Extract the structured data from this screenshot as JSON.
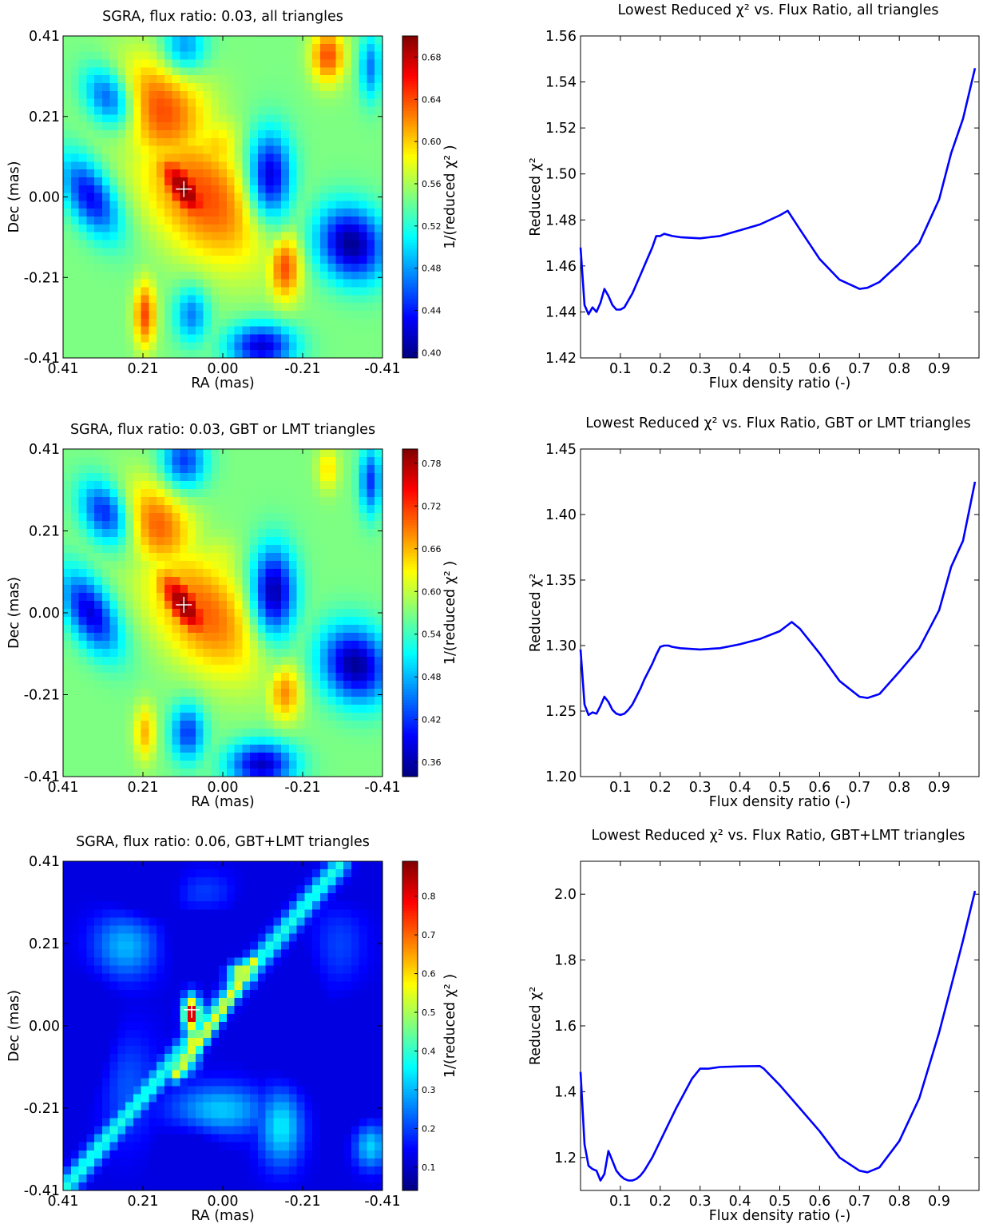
{
  "chart_data": [
    {
      "type": "heatmap",
      "title": "SGRA, flux ratio: 0.03, all triangles",
      "xlabel": "RA (mas)",
      "ylabel": "Dec (mas)",
      "x_ticks": [
        "0.41",
        "0.21",
        "0.00",
        "-0.21",
        "-0.41"
      ],
      "y_ticks": [
        "0.41",
        "0.21",
        "0.00",
        "-0.21",
        "-0.41"
      ],
      "xlim": [
        0.41,
        -0.41
      ],
      "ylim": [
        -0.41,
        0.41
      ],
      "colorbar_label": "1/(reduced χ² )",
      "colorbar_ticks": [
        "0.40",
        "0.44",
        "0.48",
        "0.52",
        "0.56",
        "0.60",
        "0.64",
        "0.68"
      ],
      "vmin": 0.395,
      "vmax": 0.7,
      "marker": {
        "x": 0.1,
        "y": 0.02
      },
      "colormap": "jet",
      "features": [
        {
          "x": 0.1,
          "y": 0.02,
          "v": 0.7,
          "sx": 0.03,
          "sy": 0.07,
          "rot": 35
        },
        {
          "x": 0.05,
          "y": 0.0,
          "v": 0.64,
          "sx": 0.09,
          "sy": 0.14,
          "rot": 40
        },
        {
          "x": 0.16,
          "y": 0.22,
          "v": 0.64,
          "sx": 0.08,
          "sy": 0.1,
          "rot": 30
        },
        {
          "x": 0.02,
          "y": 0.12,
          "v": 0.6,
          "sx": 0.05,
          "sy": 0.06,
          "rot": 0
        },
        {
          "x": -0.16,
          "y": -0.18,
          "v": 0.64,
          "sx": 0.03,
          "sy": 0.06,
          "rot": 0
        },
        {
          "x": 0.2,
          "y": -0.3,
          "v": 0.64,
          "sx": 0.02,
          "sy": 0.06,
          "rot": 0
        },
        {
          "x": -0.27,
          "y": 0.36,
          "v": 0.64,
          "sx": 0.03,
          "sy": 0.05,
          "rot": 0
        },
        {
          "x": 0.29,
          "y": 0.25,
          "v": 0.44,
          "sx": 0.04,
          "sy": 0.06,
          "rot": 30
        },
        {
          "x": 0.34,
          "y": 0.0,
          "v": 0.43,
          "sx": 0.04,
          "sy": 0.08,
          "rot": 30
        },
        {
          "x": -0.12,
          "y": 0.05,
          "v": 0.41,
          "sx": 0.04,
          "sy": 0.08,
          "rot": 0
        },
        {
          "x": -0.33,
          "y": -0.12,
          "v": 0.4,
          "sx": 0.06,
          "sy": 0.07,
          "rot": 30
        },
        {
          "x": 0.08,
          "y": -0.3,
          "v": 0.47,
          "sx": 0.03,
          "sy": 0.05,
          "rot": 0
        },
        {
          "x": -0.1,
          "y": -0.38,
          "v": 0.42,
          "sx": 0.06,
          "sy": 0.04,
          "rot": 0
        },
        {
          "x": -0.38,
          "y": 0.33,
          "v": 0.47,
          "sx": 0.02,
          "sy": 0.06,
          "rot": 0
        },
        {
          "x": 0.1,
          "y": 0.38,
          "v": 0.47,
          "sx": 0.04,
          "sy": 0.05,
          "rot": 0
        }
      ]
    },
    {
      "type": "line",
      "title": "Lowest Reduced χ²  vs. Flux Ratio, all triangles",
      "xlabel": "Flux density ratio (-)",
      "ylabel": "Reduced χ²",
      "xlim": [
        0.0,
        1.0
      ],
      "ylim": [
        1.42,
        1.56
      ],
      "x_ticks": [
        0.1,
        0.2,
        0.3,
        0.4,
        0.5,
        0.6,
        0.7,
        0.8,
        0.9
      ],
      "y_ticks": [
        1.42,
        1.44,
        1.46,
        1.48,
        1.5,
        1.52,
        1.54,
        1.56
      ],
      "y_decimals": 2,
      "series": [
        {
          "color": "#0000ff",
          "x": [
            0.0,
            0.01,
            0.02,
            0.03,
            0.04,
            0.05,
            0.06,
            0.07,
            0.08,
            0.09,
            0.1,
            0.11,
            0.12,
            0.13,
            0.14,
            0.15,
            0.16,
            0.17,
            0.18,
            0.19,
            0.2,
            0.21,
            0.22,
            0.23,
            0.25,
            0.3,
            0.35,
            0.4,
            0.45,
            0.5,
            0.52,
            0.55,
            0.6,
            0.65,
            0.7,
            0.72,
            0.75,
            0.8,
            0.85,
            0.9,
            0.93,
            0.96,
            0.99
          ],
          "y": [
            1.468,
            1.443,
            1.439,
            1.442,
            1.44,
            1.444,
            1.45,
            1.447,
            1.443,
            1.441,
            1.441,
            1.442,
            1.445,
            1.448,
            1.452,
            1.456,
            1.46,
            1.464,
            1.468,
            1.473,
            1.473,
            1.474,
            1.4735,
            1.473,
            1.4725,
            1.472,
            1.473,
            1.4755,
            1.478,
            1.482,
            1.484,
            1.476,
            1.463,
            1.454,
            1.45,
            1.4505,
            1.453,
            1.461,
            1.47,
            1.489,
            1.509,
            1.524,
            1.546
          ]
        }
      ]
    },
    {
      "type": "heatmap",
      "title": "SGRA, flux ratio: 0.03, GBT or LMT triangles",
      "xlabel": "RA (mas)",
      "ylabel": "Dec (mas)",
      "x_ticks": [
        "0.41",
        "0.21",
        "0.00",
        "-0.21",
        "-0.41"
      ],
      "y_ticks": [
        "0.41",
        "0.21",
        "0.00",
        "-0.21",
        "-0.41"
      ],
      "xlim": [
        0.41,
        -0.41
      ],
      "ylim": [
        -0.41,
        0.41
      ],
      "colorbar_label": "1/(reduced χ² )",
      "colorbar_ticks": [
        "0.36",
        "0.42",
        "0.48",
        "0.54",
        "0.60",
        "0.66",
        "0.72",
        "0.78"
      ],
      "vmin": 0.34,
      "vmax": 0.8,
      "marker": {
        "x": 0.1,
        "y": 0.02
      },
      "colormap": "jet",
      "features": [
        {
          "x": 0.1,
          "y": 0.02,
          "v": 0.8,
          "sx": 0.03,
          "sy": 0.07,
          "rot": 35
        },
        {
          "x": 0.05,
          "y": 0.0,
          "v": 0.7,
          "sx": 0.08,
          "sy": 0.13,
          "rot": 40
        },
        {
          "x": 0.17,
          "y": 0.22,
          "v": 0.7,
          "sx": 0.06,
          "sy": 0.08,
          "rot": 30
        },
        {
          "x": 0.02,
          "y": 0.12,
          "v": 0.62,
          "sx": 0.05,
          "sy": 0.05,
          "rot": 0
        },
        {
          "x": -0.16,
          "y": -0.2,
          "v": 0.68,
          "sx": 0.03,
          "sy": 0.05,
          "rot": 0
        },
        {
          "x": 0.2,
          "y": -0.3,
          "v": 0.66,
          "sx": 0.02,
          "sy": 0.05,
          "rot": 0
        },
        {
          "x": -0.27,
          "y": 0.36,
          "v": 0.64,
          "sx": 0.02,
          "sy": 0.04,
          "rot": 0
        },
        {
          "x": 0.3,
          "y": 0.25,
          "v": 0.4,
          "sx": 0.04,
          "sy": 0.06,
          "rot": 30
        },
        {
          "x": 0.34,
          "y": 0.0,
          "v": 0.38,
          "sx": 0.04,
          "sy": 0.08,
          "rot": 30
        },
        {
          "x": -0.13,
          "y": 0.05,
          "v": 0.35,
          "sx": 0.04,
          "sy": 0.08,
          "rot": 0
        },
        {
          "x": -0.34,
          "y": -0.13,
          "v": 0.35,
          "sx": 0.06,
          "sy": 0.07,
          "rot": 30
        },
        {
          "x": 0.09,
          "y": -0.3,
          "v": 0.42,
          "sx": 0.03,
          "sy": 0.05,
          "rot": 0
        },
        {
          "x": -0.1,
          "y": -0.38,
          "v": 0.37,
          "sx": 0.06,
          "sy": 0.04,
          "rot": 0
        },
        {
          "x": -0.38,
          "y": 0.33,
          "v": 0.42,
          "sx": 0.02,
          "sy": 0.06,
          "rot": 0
        },
        {
          "x": 0.1,
          "y": 0.38,
          "v": 0.42,
          "sx": 0.04,
          "sy": 0.05,
          "rot": 0
        }
      ]
    },
    {
      "type": "line",
      "title": "Lowest Reduced χ²  vs. Flux Ratio, GBT or LMT triangles",
      "xlabel": "Flux density ratio (-)",
      "ylabel": "Reduced χ²",
      "xlim": [
        0.0,
        1.0
      ],
      "ylim": [
        1.2,
        1.45
      ],
      "x_ticks": [
        0.1,
        0.2,
        0.3,
        0.4,
        0.5,
        0.6,
        0.7,
        0.8,
        0.9
      ],
      "y_ticks": [
        1.2,
        1.25,
        1.3,
        1.35,
        1.4,
        1.45
      ],
      "y_decimals": 2,
      "series": [
        {
          "color": "#0000ff",
          "x": [
            0.0,
            0.01,
            0.02,
            0.03,
            0.04,
            0.05,
            0.06,
            0.07,
            0.08,
            0.09,
            0.1,
            0.11,
            0.12,
            0.13,
            0.14,
            0.15,
            0.16,
            0.17,
            0.18,
            0.19,
            0.2,
            0.21,
            0.22,
            0.23,
            0.25,
            0.3,
            0.35,
            0.4,
            0.45,
            0.5,
            0.53,
            0.55,
            0.6,
            0.65,
            0.7,
            0.72,
            0.75,
            0.8,
            0.85,
            0.9,
            0.93,
            0.96,
            0.99
          ],
          "y": [
            1.297,
            1.255,
            1.247,
            1.249,
            1.248,
            1.254,
            1.261,
            1.257,
            1.251,
            1.248,
            1.247,
            1.248,
            1.251,
            1.255,
            1.261,
            1.267,
            1.274,
            1.28,
            1.286,
            1.293,
            1.299,
            1.3,
            1.3,
            1.299,
            1.298,
            1.297,
            1.298,
            1.301,
            1.305,
            1.311,
            1.318,
            1.313,
            1.294,
            1.273,
            1.261,
            1.26,
            1.263,
            1.28,
            1.298,
            1.327,
            1.36,
            1.38,
            1.425
          ]
        }
      ]
    },
    {
      "type": "heatmap",
      "title": "SGRA, flux ratio: 0.06, GBT+LMT triangles",
      "xlabel": "RA (mas)",
      "ylabel": "Dec (mas)",
      "x_ticks": [
        "0.41",
        "0.21",
        "0.00",
        "-0.21",
        "-0.41"
      ],
      "y_ticks": [
        "0.41",
        "0.21",
        "0.00",
        "-0.21",
        "-0.41"
      ],
      "xlim": [
        0.41,
        -0.41
      ],
      "ylim": [
        -0.41,
        0.41
      ],
      "colorbar_label": "1/(reduced χ² )",
      "colorbar_ticks": [
        "0.1",
        "0.2",
        "0.3",
        "0.4",
        "0.5",
        "0.6",
        "0.7",
        "0.8"
      ],
      "vmin": 0.04,
      "vmax": 0.89,
      "marker": {
        "x": 0.08,
        "y": 0.04
      },
      "colormap": "jet",
      "features": [
        {
          "x": 0.08,
          "y": 0.03,
          "v": 0.85,
          "sx": 0.015,
          "sy": 0.03,
          "rot": 0
        },
        {
          "x": 0.08,
          "y": -0.05,
          "v": 0.55,
          "sx": 0.015,
          "sy": 0.04,
          "rot": 0
        },
        {
          "x": -0.05,
          "y": 0.13,
          "v": 0.6,
          "sx": 0.025,
          "sy": 0.02,
          "rot": 0
        },
        {
          "x": 0.01,
          "y": -0.21,
          "v": 0.32,
          "sx": 0.09,
          "sy": 0.045,
          "rot": 0
        },
        {
          "x": 0.25,
          "y": 0.2,
          "v": 0.3,
          "sx": 0.06,
          "sy": 0.06,
          "rot": 0
        },
        {
          "x": -0.15,
          "y": -0.25,
          "v": 0.35,
          "sx": 0.04,
          "sy": 0.07,
          "rot": 0
        },
        {
          "x": -0.38,
          "y": -0.3,
          "v": 0.33,
          "sx": 0.03,
          "sy": 0.04,
          "rot": 0
        },
        {
          "x": 0.25,
          "y": -0.15,
          "v": 0.22,
          "sx": 0.06,
          "sy": 0.1,
          "rot": 0
        },
        {
          "x": -0.3,
          "y": 0.2,
          "v": 0.2,
          "sx": 0.05,
          "sy": 0.08,
          "rot": 0
        },
        {
          "x": 0.05,
          "y": 0.33,
          "v": 0.2,
          "sx": 0.06,
          "sy": 0.04,
          "rot": 0
        },
        {
          "x": 0.2,
          "y": 0.33,
          "v": 0.05,
          "sx": 0.06,
          "sy": 0.05,
          "rot": 0
        },
        {
          "x": 0.05,
          "y": 0.22,
          "v": 0.05,
          "sx": 0.06,
          "sy": 0.05,
          "rot": 0
        },
        {
          "x": -0.1,
          "y": 0.25,
          "v": 0.05,
          "sx": 0.05,
          "sy": 0.06,
          "rot": 0
        },
        {
          "x": 0.33,
          "y": -0.05,
          "v": 0.05,
          "sx": 0.04,
          "sy": 0.1,
          "rot": 0
        },
        {
          "x": -0.18,
          "y": 0.0,
          "v": 0.05,
          "sx": 0.05,
          "sy": 0.11,
          "rot": 0
        },
        {
          "x": -0.34,
          "y": -0.1,
          "v": 0.05,
          "sx": 0.05,
          "sy": 0.1,
          "rot": 0
        },
        {
          "x": 0.08,
          "y": -0.32,
          "v": 0.05,
          "sx": 0.05,
          "sy": 0.06,
          "rot": 0
        },
        {
          "x": -0.32,
          "y": 0.38,
          "v": 0.05,
          "sx": 0.05,
          "sy": 0.05,
          "rot": 0
        }
      ],
      "ridges": [
        {
          "x1": 0.41,
          "y1": -0.41,
          "x2": -0.3,
          "y2": 0.4,
          "v": 0.38,
          "w": 0.018
        },
        {
          "x1": 0.12,
          "y1": -0.12,
          "x2": -0.08,
          "y2": 0.16,
          "v": 0.55,
          "w": 0.014
        }
      ],
      "background": 0.12
    },
    {
      "type": "line",
      "title": "Lowest Reduced χ²  vs. Flux Ratio, GBT+LMT triangles",
      "xlabel": "Flux density ratio (-)",
      "ylabel": "Reduced χ²",
      "xlim": [
        0.0,
        1.0
      ],
      "ylim": [
        1.1,
        2.1
      ],
      "x_ticks": [
        0.1,
        0.2,
        0.3,
        0.4,
        0.5,
        0.6,
        0.7,
        0.8,
        0.9
      ],
      "y_ticks": [
        1.2,
        1.4,
        1.6,
        1.8,
        2.0
      ],
      "y_decimals": 1,
      "series": [
        {
          "color": "#0000ff",
          "x": [
            0.0,
            0.01,
            0.02,
            0.03,
            0.04,
            0.05,
            0.06,
            0.07,
            0.08,
            0.09,
            0.1,
            0.11,
            0.12,
            0.13,
            0.14,
            0.15,
            0.16,
            0.18,
            0.2,
            0.22,
            0.24,
            0.26,
            0.28,
            0.3,
            0.32,
            0.35,
            0.4,
            0.45,
            0.46,
            0.5,
            0.55,
            0.6,
            0.65,
            0.7,
            0.72,
            0.75,
            0.8,
            0.85,
            0.9,
            0.93,
            0.96,
            0.99
          ],
          "y": [
            1.46,
            1.24,
            1.175,
            1.165,
            1.16,
            1.13,
            1.15,
            1.22,
            1.19,
            1.16,
            1.145,
            1.135,
            1.13,
            1.13,
            1.135,
            1.145,
            1.16,
            1.2,
            1.25,
            1.3,
            1.35,
            1.395,
            1.44,
            1.47,
            1.47,
            1.475,
            1.477,
            1.478,
            1.47,
            1.42,
            1.35,
            1.28,
            1.2,
            1.16,
            1.155,
            1.17,
            1.25,
            1.38,
            1.58,
            1.72,
            1.86,
            2.01
          ]
        }
      ]
    }
  ]
}
